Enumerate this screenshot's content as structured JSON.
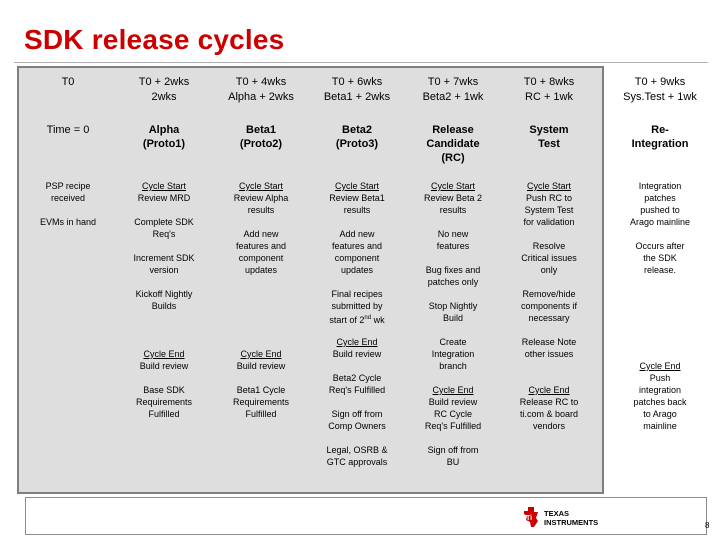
{
  "slide": {
    "title": "SDK release cycles",
    "page_number": "8",
    "logo_text": "TEXAS INSTRUMENTS"
  },
  "columns": [
    {
      "header": [
        "T0"
      ],
      "phase": [
        "Time = 0"
      ]
    },
    {
      "header": [
        "T0 + 2wks",
        "2wks"
      ],
      "phase": [
        "Alpha",
        "(Proto1)"
      ]
    },
    {
      "header": [
        "T0 + 4wks",
        "Alpha + 2wks"
      ],
      "phase": [
        "Beta1",
        "(Proto2)"
      ]
    },
    {
      "header": [
        "T0 + 6wks",
        "Beta1 + 2wks"
      ],
      "phase": [
        "Beta2",
        "(Proto3)"
      ]
    },
    {
      "header": [
        "T0 + 7wks",
        "Beta2 + 1wk"
      ],
      "phase": [
        "Release",
        "Candidate",
        "(RC)"
      ]
    },
    {
      "header": [
        "T0 + 8wks",
        "RC + 1wk"
      ],
      "phase": [
        "System",
        "Test"
      ]
    },
    {
      "header": [
        "T0 + 9wks",
        "Sys.Test + 1wk"
      ],
      "phase": [
        "Re-",
        "Integration"
      ]
    }
  ],
  "col0_notes": [
    {
      "lines": [
        "PSP recipe",
        "received"
      ]
    },
    {
      "lines": [
        "EVMs in hand"
      ]
    }
  ],
  "col1_notes": [
    {
      "underline": "Cycle Start",
      "lines": [
        "Review MRD"
      ]
    },
    {
      "lines": [
        "Complete SDK",
        "Req's"
      ]
    },
    {
      "lines": [
        "Increment SDK",
        "version"
      ]
    },
    {
      "lines": [
        "Kickoff Nightly",
        "Builds"
      ]
    },
    {
      "underline": "Cycle End",
      "lines": [
        "Build review"
      ]
    },
    {
      "lines": [
        "Base SDK",
        "Requirements",
        "Fulfilled"
      ]
    }
  ],
  "col2_notes": [
    {
      "underline": "Cycle Start",
      "lines": [
        "Review Alpha",
        "results"
      ]
    },
    {
      "lines": [
        "Add new",
        "features and",
        "component",
        "updates"
      ]
    },
    {
      "underline": "Cycle End",
      "lines": [
        "Build review"
      ]
    },
    {
      "lines": [
        "Beta1 Cycle",
        "Requirements",
        "Fulfilled"
      ]
    }
  ],
  "col3_notes": [
    {
      "underline": "Cycle Start",
      "lines": [
        "Review Beta1",
        "results"
      ]
    },
    {
      "lines": [
        "Add new",
        "features and",
        "component",
        "updates"
      ]
    },
    {
      "lines": [
        "Final recipes",
        "submitted by",
        "start of 2nd wk"
      ]
    },
    {
      "underline": "Cycle End",
      "lines": [
        "Build review"
      ]
    },
    {
      "lines": [
        "Beta2 Cycle",
        "Req's Fulfilled"
      ]
    },
    {
      "lines": [
        "Sign off from",
        "Comp Owners"
      ]
    },
    {
      "lines": [
        "Legal, OSRB &",
        "GTC approvals"
      ]
    }
  ],
  "col4_notes": [
    {
      "underline": "Cycle Start",
      "lines": [
        "Review Beta 2",
        "results"
      ]
    },
    {
      "lines": [
        "No new",
        "features"
      ]
    },
    {
      "lines": [
        "Bug fixes and",
        "patches only"
      ]
    },
    {
      "lines": [
        "Stop Nightly",
        "Build"
      ]
    },
    {
      "lines": [
        "Create",
        "Integration",
        "branch"
      ]
    },
    {
      "underline": "Cycle End",
      "lines": [
        "Build review",
        "RC Cycle",
        "Req's Fulfilled"
      ]
    },
    {
      "lines": [
        "Sign off from",
        "BU"
      ]
    }
  ],
  "col5_notes": [
    {
      "underline": "Cycle Start",
      "lines": [
        "Push RC to",
        "System Test",
        "for validation"
      ]
    },
    {
      "lines": [
        "Resolve",
        "Critical issues",
        "only"
      ]
    },
    {
      "lines": [
        "Remove/hide",
        "components if",
        "necessary"
      ]
    },
    {
      "lines": [
        "Release Note",
        "other issues"
      ]
    },
    {
      "underline": "Cycle End",
      "lines": [
        "Release RC to",
        "ti.com & board",
        "vendors"
      ]
    }
  ],
  "col6_notes": [
    {
      "lines": [
        "Integration",
        "patches",
        "pushed to",
        "Arago mainline"
      ]
    },
    {
      "lines": [
        "Occurs after",
        "the SDK",
        "release."
      ]
    },
    {
      "underline": "Cycle End",
      "lines": [
        "Push",
        "integration",
        "patches back",
        "to Arago",
        "mainline"
      ]
    }
  ],
  "colors": {
    "title": "#cc0000",
    "panel": "#dedede",
    "panel_border": "#7f7f7f",
    "logo_red": "#cc0000"
  }
}
